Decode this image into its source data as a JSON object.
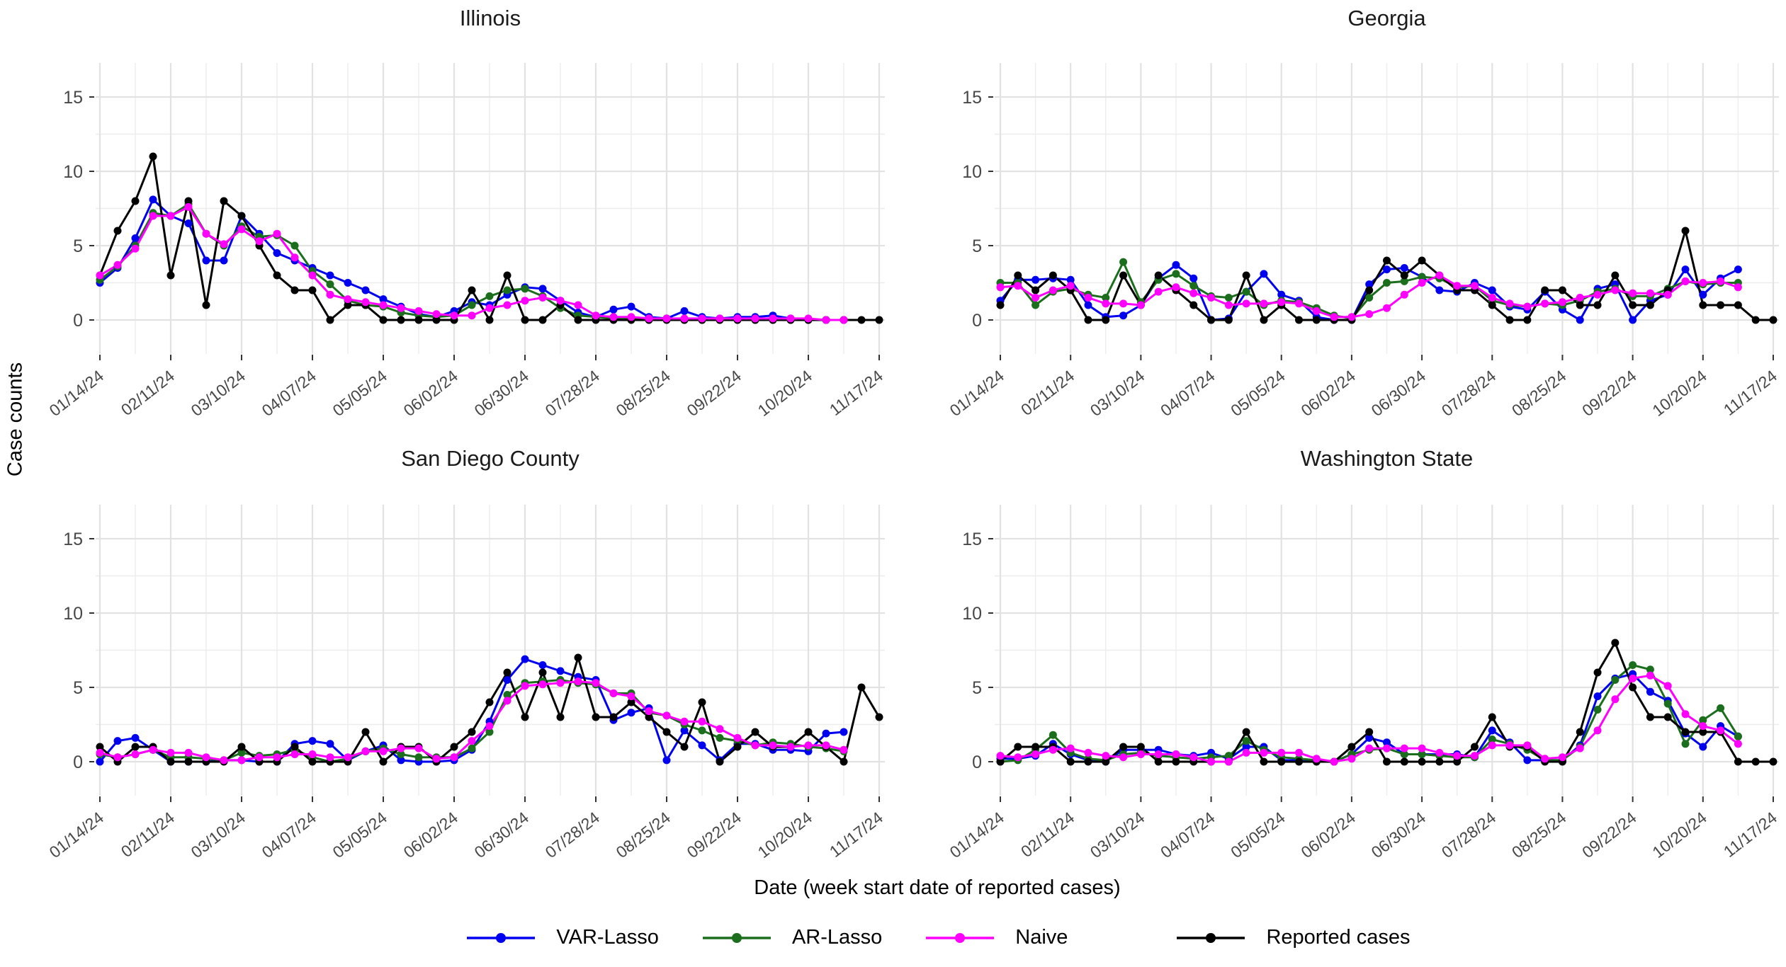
{
  "chart_data": {
    "type": "line",
    "x_unit": "week",
    "n_weeks": 45,
    "x_start": "01/14/24",
    "x_end": "11/17/24",
    "xlabel": "Date (week start date of reported cases)",
    "ylabel": "Case counts",
    "ylim": [
      0,
      17.3
    ],
    "y_ticks": [
      0,
      5,
      10,
      15
    ],
    "y_minor_ticks": [
      2.5,
      7.5,
      12.5
    ],
    "grid": "on",
    "legend_position": "bottom",
    "x_tick_labels": [
      "01/14/24",
      "02/11/24",
      "03/10/24",
      "04/07/24",
      "05/05/24",
      "06/02/24",
      "06/30/24",
      "07/28/24",
      "08/25/24",
      "09/22/24",
      "10/20/24",
      "11/17/24"
    ],
    "legend": [
      {
        "label": "VAR-Lasso",
        "color": "#0000F0"
      },
      {
        "label": "AR-Lasso",
        "color": "#1B6E1B"
      },
      {
        "label": "Naive",
        "color": "#FF00FF"
      },
      {
        "label": "Reported cases",
        "color": "#000000"
      }
    ],
    "colors": {
      "grid_major": "#E2E2E2",
      "grid_minor": "#EDEDED",
      "tick_text": "#474747",
      "tick_mark": "#333333"
    },
    "panels": [
      {
        "title": "Illinois",
        "series": {
          "VAR-Lasso": [
            2.5,
            3.5,
            5.5,
            8.1,
            7.0,
            6.5,
            4.0,
            4.0,
            7.0,
            5.8,
            4.5,
            4.0,
            3.5,
            3.0,
            2.5,
            2.0,
            1.4,
            0.9,
            0.4,
            0.2,
            0.6,
            1.2,
            1.0,
            1.7,
            2.2,
            2.1,
            1.3,
            0.5,
            0.2,
            0.7,
            0.9,
            0.2,
            0.1,
            0.6,
            0.2,
            0.1,
            0.2,
            0.2,
            0.3,
            0.1,
            0,
            0,
            0
          ],
          "AR-Lasso": [
            2.7,
            3.6,
            5.0,
            7.2,
            7.0,
            7.8,
            5.8,
            5.0,
            6.3,
            5.6,
            5.7,
            5.0,
            3.3,
            2.4,
            1.3,
            1.0,
            0.9,
            0.5,
            0.3,
            0.2,
            0.3,
            1.0,
            1.6,
            2.0,
            2.1,
            1.6,
            0.8,
            0.3,
            0.2,
            0.1,
            0.1,
            0.1,
            0.1,
            0,
            0,
            0,
            0,
            0,
            0,
            0,
            0,
            0,
            0
          ],
          "Naive": [
            3.0,
            3.7,
            4.8,
            7.0,
            7.0,
            7.6,
            5.8,
            5.1,
            6.1,
            5.3,
            5.8,
            4.2,
            3.0,
            1.7,
            1.4,
            1.2,
            1.0,
            0.8,
            0.6,
            0.4,
            0.3,
            0.3,
            0.8,
            1.0,
            1.3,
            1.5,
            1.3,
            1.0,
            0.3,
            0.2,
            0.2,
            0.1,
            0.1,
            0.1,
            0.1,
            0.1,
            0.1,
            0.1,
            0.1,
            0.1,
            0.1,
            0,
            0
          ],
          "Reported cases": [
            3,
            6,
            8,
            11,
            3,
            8,
            1,
            8,
            7,
            5,
            3,
            2,
            2,
            0,
            1,
            1,
            0,
            0,
            0,
            0,
            0,
            2,
            0,
            3,
            0,
            0,
            1,
            0,
            0,
            0,
            0,
            0,
            0,
            0,
            0,
            0,
            0,
            0,
            0,
            0,
            0,
            0,
            0,
            0,
            0
          ]
        }
      },
      {
        "title": "Georgia",
        "series": {
          "VAR-Lasso": [
            1.3,
            2.7,
            2.7,
            2.8,
            2.7,
            1.0,
            0.2,
            0.3,
            1.0,
            2.8,
            3.7,
            2.8,
            0,
            0.1,
            1.9,
            3.1,
            1.7,
            1.3,
            0.2,
            0,
            0,
            2.4,
            3.4,
            3.5,
            2.9,
            2.0,
            1.9,
            2.5,
            2.0,
            0.9,
            0.7,
            1.9,
            0.7,
            0,
            2.1,
            2.4,
            0,
            1.3,
            1.7,
            3.4,
            1.7,
            2.8,
            3.4
          ],
          "AR-Lasso": [
            2.5,
            2.5,
            1.0,
            1.9,
            2.1,
            1.7,
            1.5,
            3.9,
            1.2,
            2.7,
            3.1,
            2.3,
            1.6,
            1.5,
            1.9,
            1.0,
            1.3,
            1.2,
            0.8,
            0.3,
            0.1,
            1.5,
            2.5,
            2.6,
            2.9,
            2.8,
            2.2,
            2.3,
            1.3,
            1.0,
            0.9,
            1.1,
            1.0,
            1.3,
            1.9,
            2.1,
            1.6,
            1.6,
            2.1,
            2.6,
            2.4,
            2.5,
            2.5
          ],
          "Naive": [
            2.2,
            2.3,
            1.5,
            2.0,
            2.3,
            1.5,
            1.1,
            1.1,
            1.0,
            1.9,
            2.2,
            1.8,
            1.5,
            1.0,
            1.1,
            1.1,
            1.2,
            1.1,
            0.6,
            0.2,
            0.2,
            0.4,
            0.8,
            1.7,
            2.5,
            3.0,
            2.3,
            2.3,
            1.5,
            1.1,
            0.9,
            1.1,
            1.2,
            1.5,
            1.7,
            2.0,
            1.8,
            1.8,
            1.7,
            2.6,
            2.5,
            2.6,
            2.2
          ],
          "Reported cases": [
            1,
            3,
            2,
            3,
            2,
            0,
            0,
            3,
            1,
            3,
            2,
            1,
            0,
            0,
            3,
            0,
            1,
            0,
            0,
            0,
            0,
            2,
            4,
            3,
            4,
            3,
            2,
            2,
            1,
            0,
            0,
            2,
            2,
            1,
            1,
            3,
            1,
            1,
            2,
            6,
            1,
            1,
            1,
            0,
            0
          ]
        }
      },
      {
        "title": "San Diego County",
        "series": {
          "VAR-Lasso": [
            0,
            1.4,
            1.6,
            0.8,
            0,
            0,
            0,
            0.1,
            0.1,
            0,
            0,
            1.2,
            1.4,
            1.2,
            0.1,
            0.7,
            1.1,
            0.1,
            0,
            0,
            0.1,
            0.8,
            2.7,
            5.5,
            6.9,
            6.5,
            6.1,
            5.7,
            5.5,
            2.8,
            3.3,
            3.6,
            0.1,
            2.1,
            1.1,
            0.1,
            1.2,
            1.2,
            0.8,
            0.8,
            0.7,
            1.9,
            2.0
          ],
          "AR-Lasso": [
            0.5,
            0.3,
            0.5,
            0.8,
            0.3,
            0.3,
            0.2,
            0.1,
            0.6,
            0.4,
            0.5,
            0.8,
            0.3,
            0,
            0.2,
            0.7,
            0.9,
            0.5,
            0.3,
            0.3,
            0.3,
            0.9,
            2.0,
            4.5,
            5.3,
            5.4,
            5.5,
            5.3,
            5.2,
            4.6,
            4.6,
            3.3,
            3.1,
            2.5,
            2.1,
            1.6,
            1.4,
            1.1,
            1.3,
            1.2,
            1.0,
            0.9,
            0.7
          ],
          "Naive": [
            0.6,
            0.3,
            0.5,
            0.8,
            0.6,
            0.6,
            0.3,
            0.1,
            0.1,
            0.3,
            0.3,
            0.5,
            0.5,
            0.3,
            0.3,
            0.7,
            0.7,
            0.9,
            0.9,
            0.2,
            0.3,
            1.4,
            2.4,
            4.1,
            5.1,
            5.2,
            5.3,
            5.4,
            5.3,
            4.6,
            4.4,
            3.4,
            3.1,
            2.7,
            2.7,
            2.2,
            1.6,
            1.1,
            1.1,
            1.0,
            1.1,
            1.1,
            0.8
          ],
          "Reported cases": [
            1,
            0,
            1,
            1,
            0,
            0,
            0,
            0,
            1,
            0,
            0,
            1,
            0,
            0,
            0,
            2,
            0,
            1,
            1,
            0,
            1,
            2,
            4,
            6,
            3,
            6,
            3,
            7,
            3,
            3,
            4,
            3,
            2,
            1,
            4,
            0,
            1,
            2,
            1,
            1,
            2,
            1,
            0,
            5,
            3
          ]
        }
      },
      {
        "title": "Washington State",
        "series": {
          "VAR-Lasso": [
            0.2,
            0.2,
            0.4,
            1.2,
            0.5,
            0.1,
            0,
            0.8,
            0.8,
            0.8,
            0.5,
            0.4,
            0.6,
            0.2,
            1.0,
            1.0,
            0.1,
            0.1,
            0.1,
            0,
            0.5,
            1.6,
            1.3,
            0.5,
            0.5,
            0.5,
            0.5,
            0.3,
            2.1,
            1.3,
            0.1,
            0.1,
            0.1,
            1.1,
            4.4,
            5.6,
            5.9,
            4.7,
            4.1,
            1.9,
            1.0,
            2.4,
            1.7
          ],
          "AR-Lasso": [
            0,
            0.1,
            0.8,
            1.8,
            0.6,
            0.2,
            0.1,
            0.5,
            0.6,
            0.4,
            0.3,
            0.2,
            0.3,
            0.4,
            1.4,
            0.8,
            0.3,
            0.2,
            0.1,
            0,
            0.5,
            0.8,
            0.9,
            0.5,
            0.5,
            0.4,
            0.3,
            0.3,
            1.5,
            1.2,
            0.8,
            0.1,
            0.1,
            1.0,
            3.5,
            5.5,
            6.5,
            6.2,
            3.9,
            1.2,
            2.8,
            3.6,
            1.7
          ],
          "Naive": [
            0.4,
            0.3,
            0.5,
            0.8,
            0.9,
            0.6,
            0.4,
            0.3,
            0.5,
            0.5,
            0.5,
            0.3,
            0,
            0,
            0.6,
            0.6,
            0.6,
            0.6,
            0.2,
            0,
            0.2,
            0.9,
            0.9,
            0.9,
            0.9,
            0.6,
            0.4,
            0.4,
            1.1,
            1.1,
            1.1,
            0.2,
            0.3,
            0.9,
            2.1,
            4.2,
            5.6,
            5.8,
            5.1,
            3.2,
            2.4,
            2.1,
            1.2
          ],
          "Reported cases": [
            0,
            1,
            1,
            1,
            0,
            0,
            0,
            1,
            1,
            0,
            0,
            0,
            0,
            0,
            2,
            0,
            0,
            0,
            0,
            0,
            1,
            2,
            0,
            0,
            0,
            0,
            0,
            1,
            3,
            1,
            1,
            0,
            0,
            2,
            6,
            8,
            5,
            3,
            3,
            2,
            2,
            2,
            0,
            0,
            0
          ]
        }
      }
    ]
  }
}
